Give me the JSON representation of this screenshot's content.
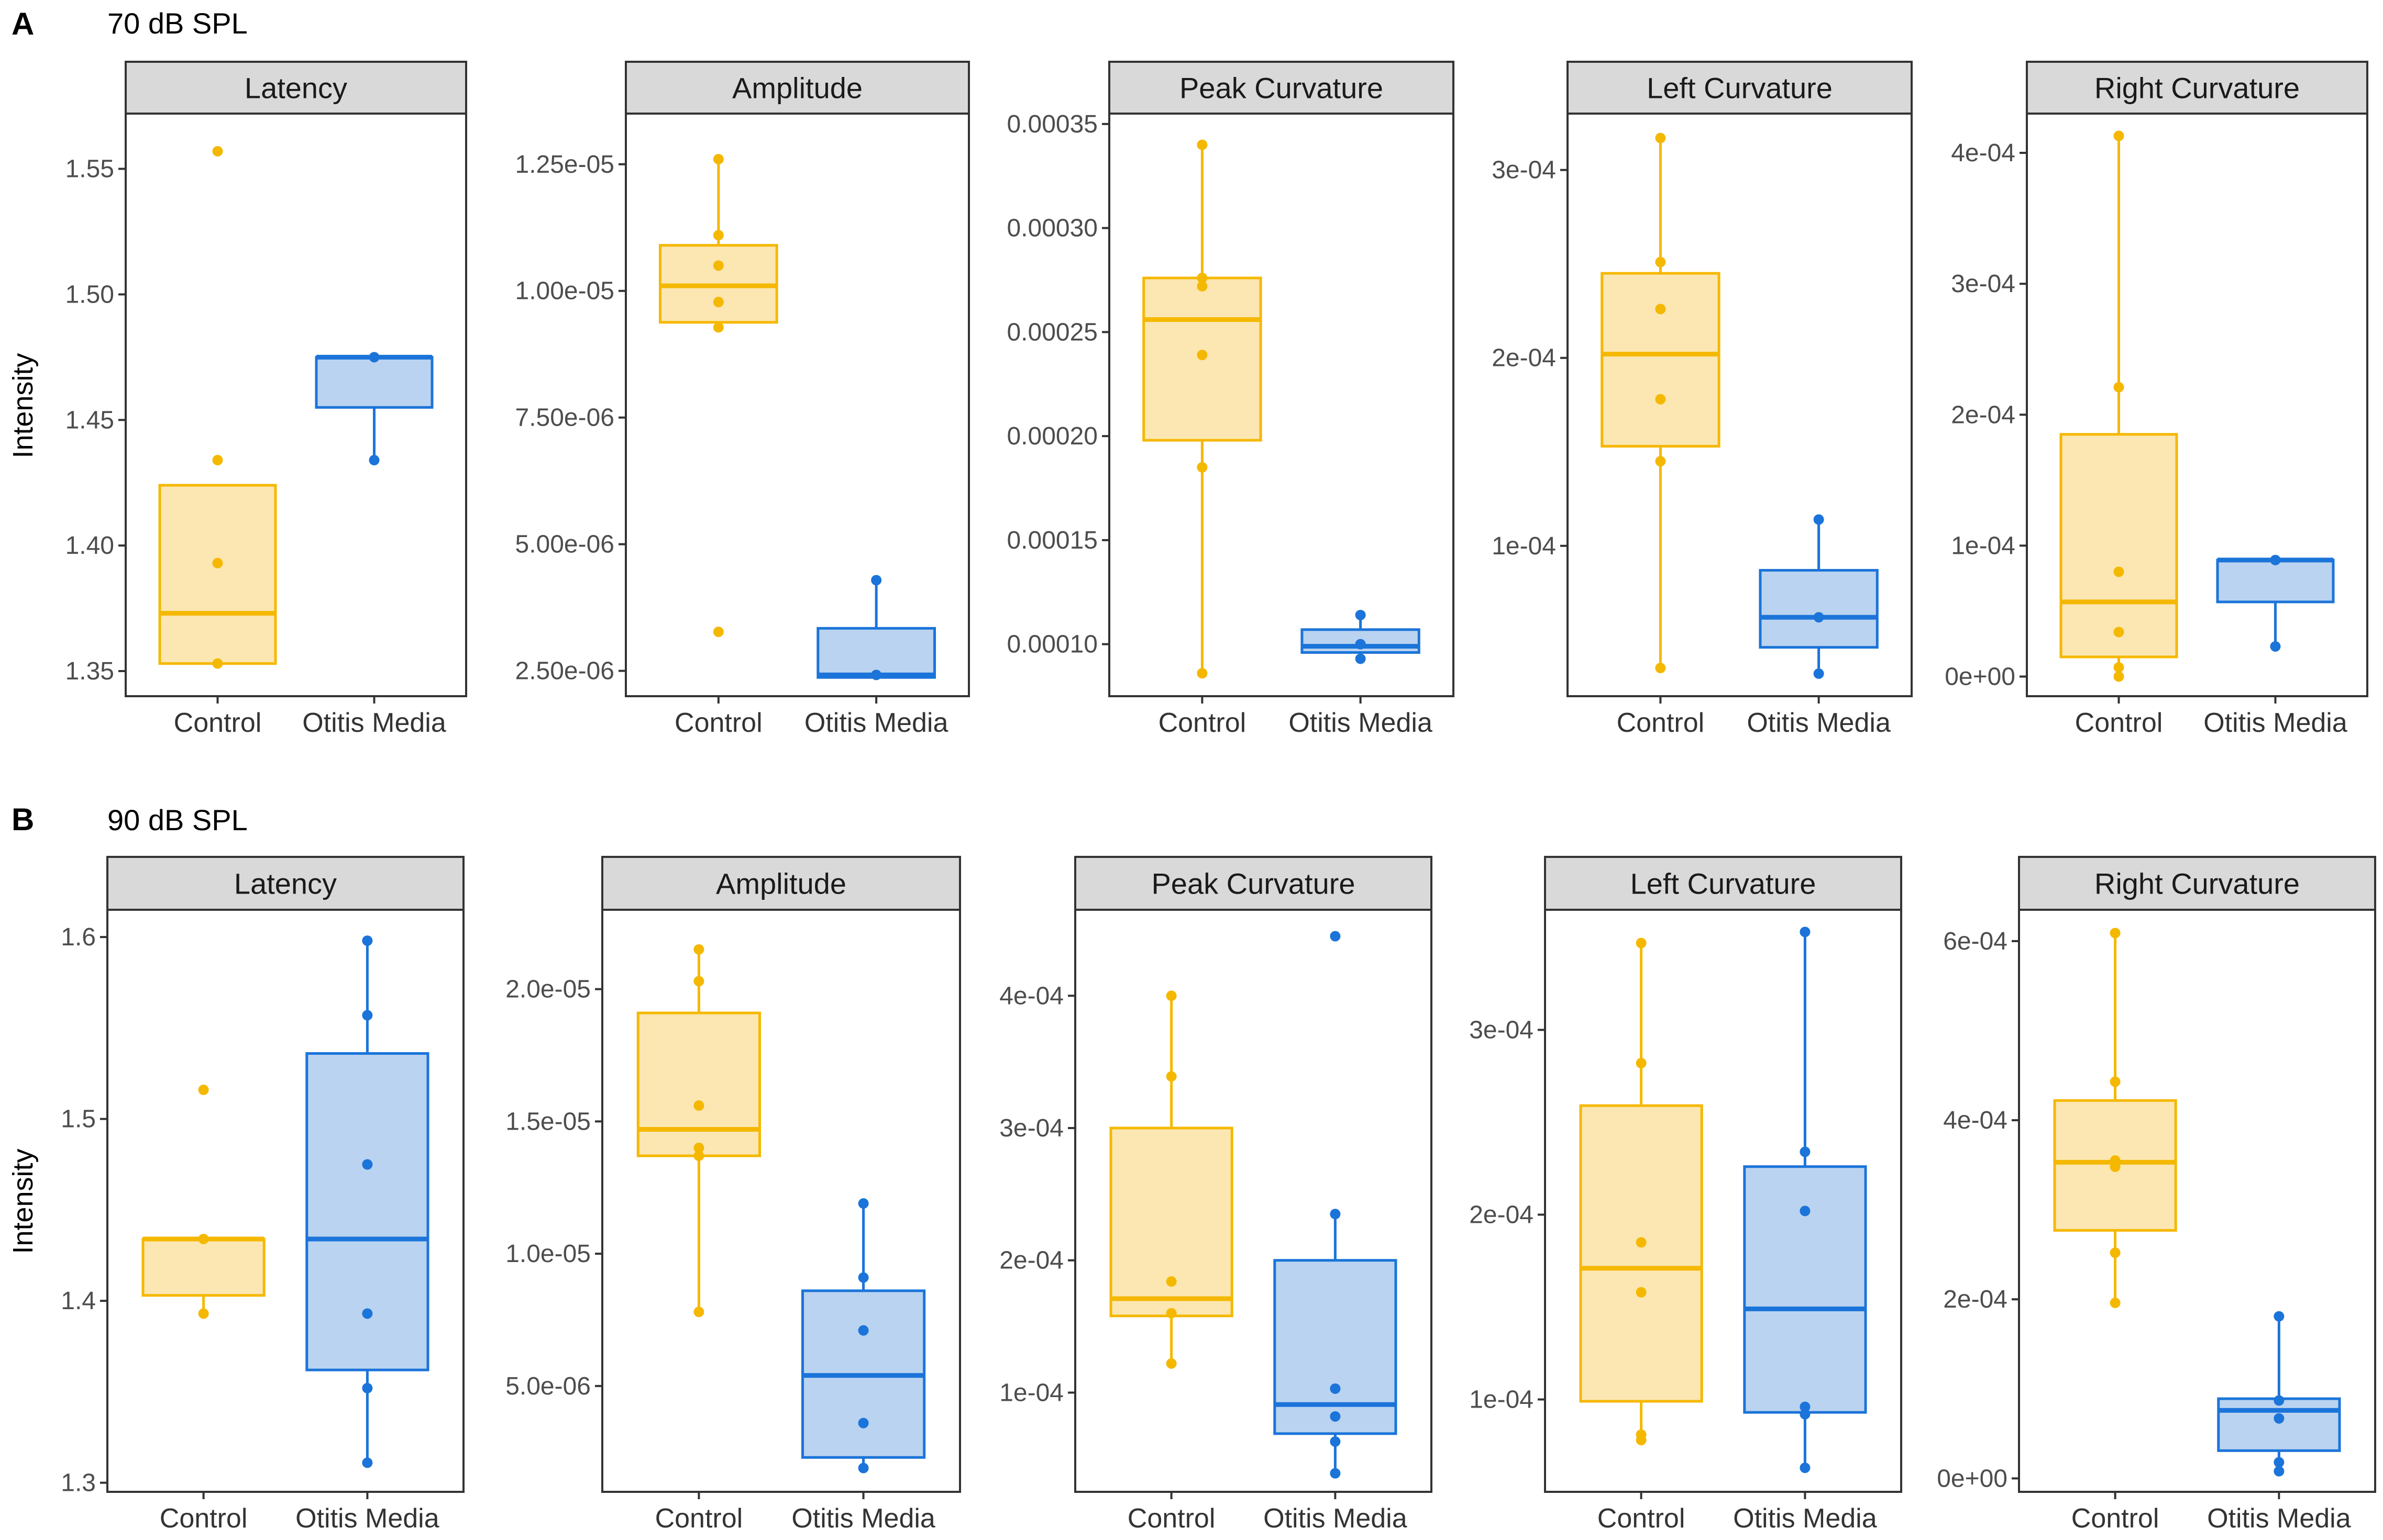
{
  "figure": {
    "panels": [
      {
        "label": "A",
        "title": "70 dB SPL"
      },
      {
        "label": "B",
        "title": "90 dB SPL"
      }
    ],
    "ylabel": "Intensity",
    "groups": [
      "Control",
      "Otitis Media"
    ],
    "colors": {
      "control_line": "#F5B800",
      "control_fill": "#FCE7B2",
      "om_line": "#1B74D9",
      "om_fill": "#BAD3F0",
      "strip_fill": "#D9D9D9",
      "strip_border": "#333333",
      "axis": "#333333"
    }
  },
  "chart_data": [
    {
      "type": "box",
      "row": 0,
      "col": 0,
      "title": "Latency",
      "ylim": [
        1.34,
        1.572
      ],
      "ticks": [
        1.35,
        1.4,
        1.45,
        1.5,
        1.55
      ],
      "tick_labels": [
        "1.35",
        "1.40",
        "1.45",
        "1.50",
        "1.55"
      ],
      "groups": [
        {
          "name": "Control",
          "q1": 1.353,
          "median": 1.373,
          "q3": 1.424,
          "whisker_low": 1.353,
          "whisker_high": 1.424,
          "points": [
            1.353,
            1.393,
            1.434,
            1.557
          ]
        },
        {
          "name": "Otitis Media",
          "q1": 1.455,
          "median": 1.475,
          "q3": 1.475,
          "whisker_low": 1.434,
          "whisker_high": 1.475,
          "points": [
            1.434,
            1.475
          ]
        }
      ]
    },
    {
      "type": "box",
      "row": 0,
      "col": 1,
      "title": "Amplitude",
      "ylim": [
        2e-06,
        1.35e-05
      ],
      "ticks": [
        2.5e-06,
        5e-06,
        7.5e-06,
        1e-05,
        1.25e-05
      ],
      "tick_labels": [
        "2.50e-06",
        "5.00e-06",
        "7.50e-06",
        "1.00e-05",
        "1.25e-05"
      ],
      "groups": [
        {
          "name": "Control",
          "q1": 9.38e-06,
          "median": 1.01e-05,
          "q3": 1.09e-05,
          "whisker_low": 9.38e-06,
          "whisker_high": 1.26e-05,
          "points": [
            3.27e-06,
            9.28e-06,
            9.78e-06,
            1.05e-05,
            1.11e-05,
            1.26e-05
          ]
        },
        {
          "name": "Otitis Media",
          "q1": 2.37e-06,
          "median": 2.42e-06,
          "q3": 3.34e-06,
          "whisker_low": 2.37e-06,
          "whisker_high": 4.29e-06,
          "points": [
            2.42e-06,
            4.29e-06
          ]
        }
      ]
    },
    {
      "type": "box",
      "row": 0,
      "col": 2,
      "title": "Peak Curvature",
      "ylim": [
        7.5e-05,
        0.000355
      ],
      "ticks": [
        0.0001,
        0.00015,
        0.0002,
        0.00025,
        0.0003,
        0.00035
      ],
      "tick_labels": [
        "0.00010",
        "0.00015",
        "0.00020",
        "0.00025",
        "0.00030",
        "0.00035"
      ],
      "groups": [
        {
          "name": "Control",
          "q1": 0.000198,
          "median": 0.000256,
          "q3": 0.000276,
          "whisker_low": 8.6e-05,
          "whisker_high": 0.00034,
          "points": [
            8.6e-05,
            0.000185,
            0.000239,
            0.000272,
            0.000276,
            0.00034
          ]
        },
        {
          "name": "Otitis Media",
          "q1": 9.6e-05,
          "median": 9.9e-05,
          "q3": 0.000107,
          "whisker_low": 9.6e-05,
          "whisker_high": 0.000114,
          "points": [
            9.3e-05,
            0.0001,
            0.000114
          ]
        }
      ]
    },
    {
      "type": "box",
      "row": 0,
      "col": 3,
      "title": "Left Curvature",
      "ylim": [
        2e-05,
        0.00033
      ],
      "ticks": [
        0.0001,
        0.0002,
        0.0003
      ],
      "tick_labels": [
        "1e-04",
        "2e-04",
        "3e-04"
      ],
      "groups": [
        {
          "name": "Control",
          "q1": 0.000153,
          "median": 0.000202,
          "q3": 0.000245,
          "whisker_low": 3.5e-05,
          "whisker_high": 0.000317,
          "points": [
            3.5e-05,
            0.000145,
            0.000178,
            0.000226,
            0.000251,
            0.000317
          ]
        },
        {
          "name": "Otitis Media",
          "q1": 4.6e-05,
          "median": 6.2e-05,
          "q3": 8.7e-05,
          "whisker_low": 3.2e-05,
          "whisker_high": 0.000114,
          "points": [
            3.2e-05,
            6.2e-05,
            0.000114
          ]
        }
      ]
    },
    {
      "type": "box",
      "row": 0,
      "col": 4,
      "title": "Right Curvature",
      "ylim": [
        -1.5e-05,
        0.00043
      ],
      "ticks": [
        0,
        0.0001,
        0.0002,
        0.0003,
        0.0004
      ],
      "tick_labels": [
        "0e+00",
        "1e-04",
        "2e-04",
        "3e-04",
        "4e-04"
      ],
      "groups": [
        {
          "name": "Control",
          "q1": 1.5e-05,
          "median": 5.7e-05,
          "q3": 0.000185,
          "whisker_low": 0,
          "whisker_high": 0.000413,
          "points": [
            0,
            7e-06,
            3.4e-05,
            8e-05,
            0.000221,
            0.000413
          ]
        },
        {
          "name": "Otitis Media",
          "q1": 5.7e-05,
          "median": 8.9e-05,
          "q3": 8.9e-05,
          "whisker_low": 2.3e-05,
          "whisker_high": 8.9e-05,
          "points": [
            2.3e-05,
            8.9e-05
          ]
        }
      ]
    },
    {
      "type": "box",
      "row": 1,
      "col": 0,
      "title": "Latency",
      "ylim": [
        1.295,
        1.615
      ],
      "ticks": [
        1.3,
        1.4,
        1.5,
        1.6
      ],
      "tick_labels": [
        "1.3",
        "1.4",
        "1.5",
        "1.6"
      ],
      "groups": [
        {
          "name": "Control",
          "q1": 1.403,
          "median": 1.434,
          "q3": 1.434,
          "whisker_low": 1.393,
          "whisker_high": 1.434,
          "points": [
            1.393,
            1.434,
            1.516
          ]
        },
        {
          "name": "Otitis Media",
          "q1": 1.362,
          "median": 1.434,
          "q3": 1.536,
          "whisker_low": 1.311,
          "whisker_high": 1.598,
          "points": [
            1.311,
            1.352,
            1.393,
            1.475,
            1.557,
            1.598
          ]
        }
      ]
    },
    {
      "type": "box",
      "row": 1,
      "col": 1,
      "title": "Amplitude",
      "ylim": [
        1e-06,
        2.3e-05
      ],
      "ticks": [
        5e-06,
        1e-05,
        1.5e-05,
        2e-05
      ],
      "tick_labels": [
        "5.0e-06",
        "1.0e-05",
        "1.5e-05",
        "2.0e-05"
      ],
      "groups": [
        {
          "name": "Control",
          "q1": 1.37e-05,
          "median": 1.47e-05,
          "q3": 1.91e-05,
          "whisker_low": 7.8e-06,
          "whisker_high": 2.15e-05,
          "points": [
            7.8e-06,
            1.37e-05,
            1.4e-05,
            1.56e-05,
            2.03e-05,
            2.15e-05
          ]
        },
        {
          "name": "Otitis Media",
          "q1": 2.3e-06,
          "median": 5.4e-06,
          "q3": 8.6e-06,
          "whisker_low": 1.9e-06,
          "whisker_high": 1.19e-05,
          "points": [
            1.9e-06,
            3.6e-06,
            7.1e-06,
            9.1e-06,
            1.19e-05
          ]
        }
      ]
    },
    {
      "type": "box",
      "row": 1,
      "col": 2,
      "title": "Peak Curvature",
      "ylim": [
        2.5e-05,
        0.000465
      ],
      "ticks": [
        0.0001,
        0.0002,
        0.0003,
        0.0004
      ],
      "tick_labels": [
        "1e-04",
        "2e-04",
        "3e-04",
        "4e-04"
      ],
      "groups": [
        {
          "name": "Control",
          "q1": 0.000158,
          "median": 0.000171,
          "q3": 0.0003,
          "whisker_low": 0.000122,
          "whisker_high": 0.0004,
          "points": [
            0.000122,
            0.00016,
            0.000184,
            0.000339,
            0.0004
          ]
        },
        {
          "name": "Otitis Media",
          "q1": 6.9e-05,
          "median": 9.1e-05,
          "q3": 0.0002,
          "whisker_low": 3.9e-05,
          "whisker_high": 0.000235,
          "points": [
            3.9e-05,
            6.3e-05,
            8.2e-05,
            0.000103,
            0.000235,
            0.000445
          ]
        }
      ]
    },
    {
      "type": "box",
      "row": 1,
      "col": 3,
      "title": "Left Curvature",
      "ylim": [
        5e-05,
        0.000365
      ],
      "ticks": [
        0.0001,
        0.0002,
        0.0003
      ],
      "tick_labels": [
        "1e-04",
        "2e-04",
        "3e-04"
      ],
      "groups": [
        {
          "name": "Control",
          "q1": 9.9e-05,
          "median": 0.000171,
          "q3": 0.000259,
          "whisker_low": 7.8e-05,
          "whisker_high": 0.000347,
          "points": [
            7.8e-05,
            8.1e-05,
            0.000158,
            0.000185,
            0.000282,
            0.000347
          ]
        },
        {
          "name": "Otitis Media",
          "q1": 9.3e-05,
          "median": 0.000149,
          "q3": 0.000226,
          "whisker_low": 6.3e-05,
          "whisker_high": 0.000353,
          "points": [
            6.3e-05,
            9.2e-05,
            9.6e-05,
            0.000202,
            0.000234,
            0.000353
          ]
        }
      ]
    },
    {
      "type": "box",
      "row": 1,
      "col": 4,
      "title": "Right Curvature",
      "ylim": [
        -1.5e-05,
        0.000635
      ],
      "ticks": [
        0,
        0.0002,
        0.0004,
        0.0006
      ],
      "tick_labels": [
        "0e+00",
        "2e-04",
        "4e-04",
        "6e-04"
      ],
      "groups": [
        {
          "name": "Control",
          "q1": 0.000277,
          "median": 0.000353,
          "q3": 0.000422,
          "whisker_low": 0.000196,
          "whisker_high": 0.000609,
          "points": [
            0.000196,
            0.000252,
            0.000348,
            0.000355,
            0.000443,
            0.000609
          ]
        },
        {
          "name": "Otitis Media",
          "q1": 3.1e-05,
          "median": 7.6e-05,
          "q3": 8.9e-05,
          "whisker_low": 8e-06,
          "whisker_high": 0.000181,
          "points": [
            8e-06,
            1.8e-05,
            6.7e-05,
            8.7e-05,
            0.000181
          ]
        }
      ]
    }
  ]
}
